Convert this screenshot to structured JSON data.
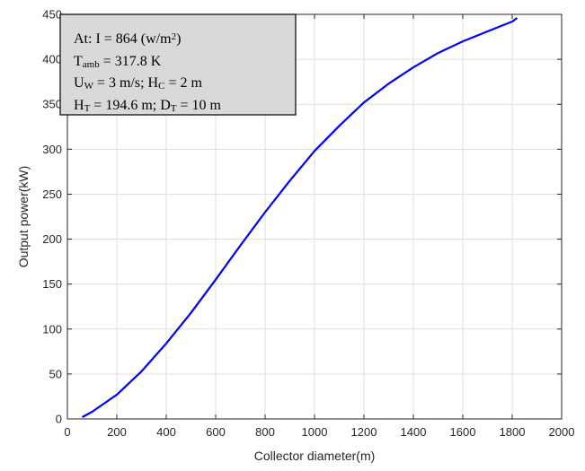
{
  "chart_data": {
    "type": "line",
    "title": "",
    "xlabel": "Collector diameter(m)",
    "ylabel": "Output power(kW)",
    "xlim": [
      0,
      2000
    ],
    "ylim": [
      0,
      450
    ],
    "xticks": [
      0,
      200,
      400,
      600,
      800,
      1000,
      1200,
      1400,
      1600,
      1800,
      2000
    ],
    "yticks": [
      0,
      50,
      100,
      150,
      200,
      250,
      300,
      350,
      400,
      450
    ],
    "grid": true,
    "legend": "none",
    "series": [
      {
        "color": "#0000ff",
        "x": [
          60,
          100,
          200,
          300,
          400,
          500,
          600,
          700,
          800,
          900,
          1000,
          1100,
          1200,
          1300,
          1400,
          1500,
          1600,
          1700,
          1800,
          1820
        ],
        "y": [
          2,
          8,
          27,
          53,
          84,
          118,
          155,
          193,
          230,
          265,
          298,
          326,
          352,
          373,
          391,
          407,
          420,
          431,
          442,
          446
        ]
      }
    ],
    "annotation": {
      "position": "top-left",
      "lines": [
        [
          {
            "t": "At: I = 864 (w/m"
          },
          {
            "t": "2",
            "sup": true
          },
          {
            "t": ")"
          }
        ],
        [
          {
            "t": "T"
          },
          {
            "t": "amb",
            "sub": true
          },
          {
            "t": " = 317.8 K"
          }
        ],
        [
          {
            "t": "U"
          },
          {
            "t": "W",
            "sub": true
          },
          {
            "t": " = 3 m/s; H"
          },
          {
            "t": "C",
            "sub": true
          },
          {
            "t": " = 2 m"
          }
        ],
        [
          {
            "t": "H"
          },
          {
            "t": "T",
            "sub": true
          },
          {
            "t": " = 194.6 m; D"
          },
          {
            "t": "T",
            "sub": true
          },
          {
            "t": " = 10 m"
          }
        ]
      ]
    }
  }
}
